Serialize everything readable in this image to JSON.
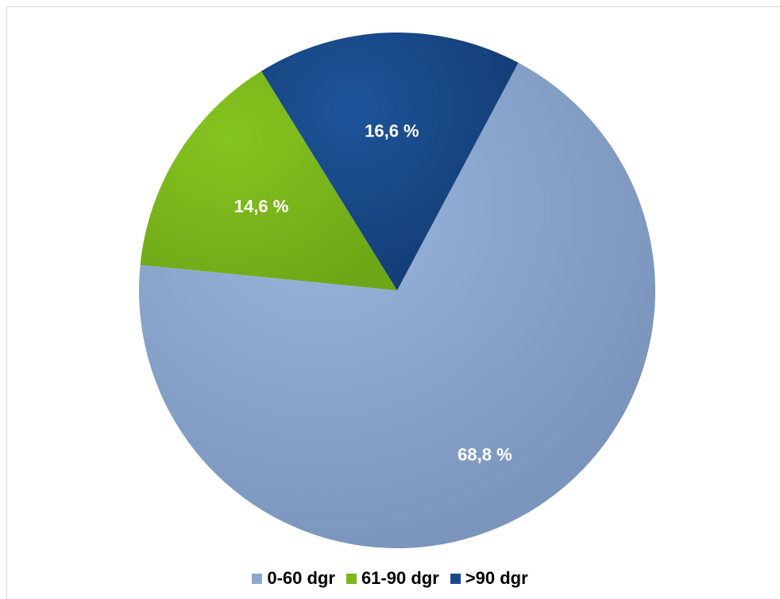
{
  "chart_data": {
    "type": "pie",
    "series": [
      {
        "name": "0-60 dgr",
        "value": 68.8,
        "label": "68,8 %",
        "color": "#8aa8cf"
      },
      {
        "name": "61-90 dgr",
        "value": 14.6,
        "label": "14,6 %",
        "color": "#7cb81c"
      },
      {
        "name": ">90 dgr",
        "value": 16.6,
        "label": "16,6 %",
        "color": "#1a4a8c"
      }
    ],
    "legend_position": "bottom",
    "title": ""
  },
  "legend": {
    "items": [
      {
        "label": "0-60 dgr",
        "color": "#8aa8cf"
      },
      {
        "label": "61-90 dgr",
        "color": "#7cb81c"
      },
      {
        "label": ">90 dgr",
        "color": "#1a4a8c"
      }
    ]
  }
}
